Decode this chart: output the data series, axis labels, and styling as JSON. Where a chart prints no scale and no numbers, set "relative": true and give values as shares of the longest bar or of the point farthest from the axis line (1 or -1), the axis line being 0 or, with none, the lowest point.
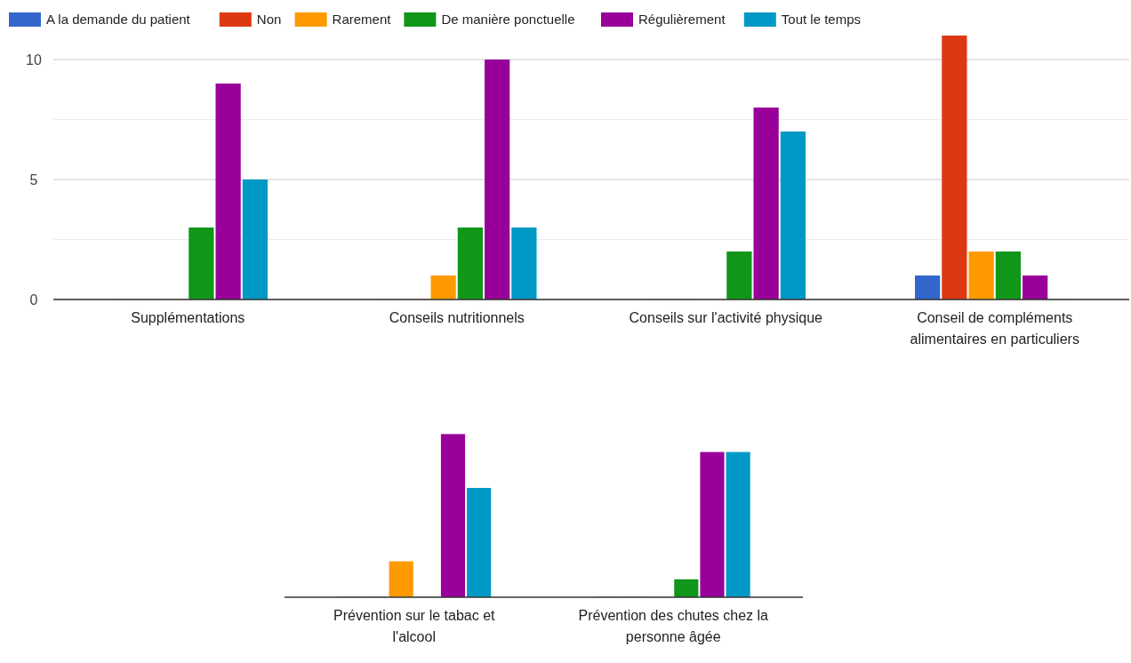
{
  "chart_data": [
    {
      "type": "bar",
      "categories": [
        "Supplémentations",
        "Conseils nutritionnels",
        "Conseils sur l'activité physique",
        "Conseil de compléments alimentaires en particuliers"
      ],
      "series": [
        {
          "name": "A la demande du patient",
          "color": "#3366cc",
          "values": [
            0,
            0,
            0,
            1
          ]
        },
        {
          "name": "Non",
          "color": "#dc3912",
          "values": [
            0,
            0,
            0,
            11
          ]
        },
        {
          "name": "Rarement",
          "color": "#ff9900",
          "values": [
            0,
            1,
            0,
            2
          ]
        },
        {
          "name": "De manière ponctuelle",
          "color": "#109618",
          "values": [
            3,
            3,
            2,
            2
          ]
        },
        {
          "name": "Régulièrement",
          "color": "#990099",
          "values": [
            9,
            10,
            8,
            1
          ]
        },
        {
          "name": "Tout le temps",
          "color": "#0099c6",
          "values": [
            5,
            3,
            7,
            0
          ]
        }
      ],
      "ylim": [
        0,
        11
      ],
      "yticks": [
        0,
        {
          "value": 2.5,
          "label": null
        },
        5,
        {
          "value": 7.5,
          "label": null
        },
        10
      ],
      "grid": true,
      "legend": "top"
    },
    {
      "type": "bar",
      "relative": true,
      "categories": [
        "Prévention sur le tabac et l'alcool",
        "Prévention des chutes chez la personne âgée"
      ],
      "series": [
        {
          "color": "#3366cc",
          "values": [
            0,
            0
          ]
        },
        {
          "color": "#dc3912",
          "values": [
            0,
            0
          ]
        },
        {
          "color": "#ff9900",
          "values": [
            0.22,
            0
          ]
        },
        {
          "color": "#109618",
          "values": [
            0,
            0.11
          ]
        },
        {
          "color": "#990099",
          "values": [
            1,
            0.89
          ]
        },
        {
          "color": "#0099c6",
          "values": [
            0.67,
            0.89
          ]
        }
      ]
    }
  ]
}
